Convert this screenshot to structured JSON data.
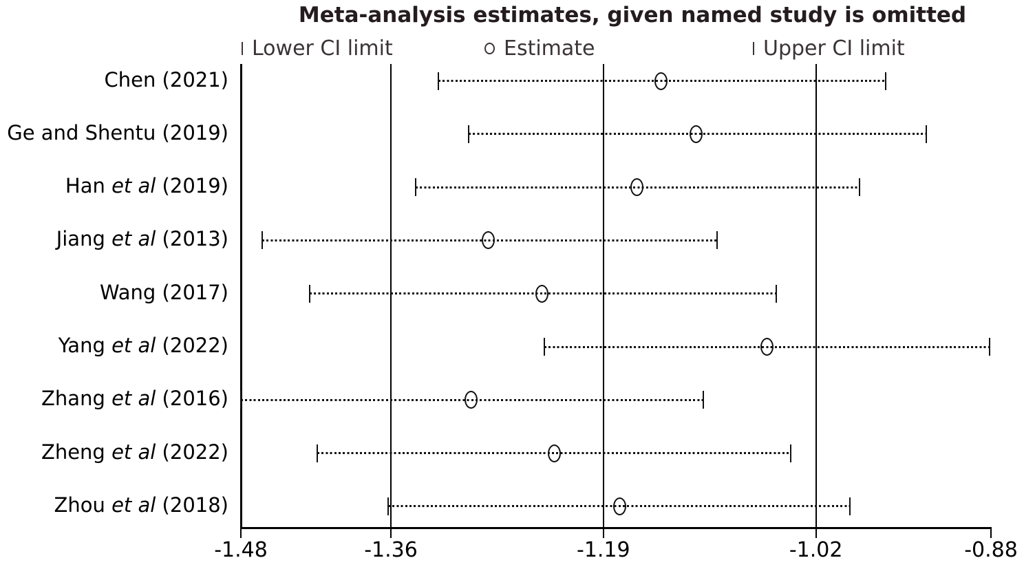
{
  "title": "Meta-analysis estimates, given named study is omitted",
  "legend": {
    "lower": {
      "symbol": "ci-tick-icon",
      "label": "Lower CI limit"
    },
    "estimate": {
      "symbol": "circle-icon",
      "label": "Estimate"
    },
    "upper": {
      "symbol": "ci-tick-icon",
      "label": "Upper CI limit"
    }
  },
  "chart_data": {
    "type": "scatter",
    "subtype": "leave-one-out-sensitivity-forest-plot",
    "title": "Meta-analysis estimates, given named study is omitted",
    "xlabel": "",
    "ylabel": "",
    "xlim": [
      -1.48,
      -0.88
    ],
    "xticks": [
      -1.48,
      -1.36,
      -1.19,
      -1.02,
      -0.88
    ],
    "reference_lines": {
      "overall_lower_ci": -1.36,
      "overall_estimate": -1.19,
      "overall_upper_ci": -1.02
    },
    "grid": false,
    "legend_position": "top",
    "studies": [
      {
        "name": "Chen",
        "etal": "",
        "year": "(2021)",
        "lower_ci": -1.322,
        "estimate": -1.144,
        "upper_ci": -0.964
      },
      {
        "name": "Ge and Shentu",
        "etal": "",
        "year": "(2019)",
        "lower_ci": -1.298,
        "estimate": -1.116,
        "upper_ci": -0.932
      },
      {
        "name": "Han",
        "etal": "et al",
        "year": "(2019)",
        "lower_ci": -1.34,
        "estimate": -1.163,
        "upper_ci": -0.985
      },
      {
        "name": "Jiang",
        "etal": "et al",
        "year": "(2013)",
        "lower_ci": -1.463,
        "estimate": -1.282,
        "upper_ci": -1.099
      },
      {
        "name": "Wang",
        "etal": "",
        "year": "(2017)",
        "lower_ci": -1.425,
        "estimate": -1.239,
        "upper_ci": -1.052
      },
      {
        "name": "Yang",
        "etal": "et al",
        "year": "(2022)",
        "lower_ci": -1.237,
        "estimate": -1.059,
        "upper_ci": -0.881
      },
      {
        "name": "Zhang",
        "etal": "et al",
        "year": "(2016)",
        "lower_ci": -1.48,
        "estimate": -1.296,
        "upper_ci": -1.11
      },
      {
        "name": "Zheng",
        "etal": "et al",
        "year": "(2022)",
        "lower_ci": -1.419,
        "estimate": -1.229,
        "upper_ci": -1.04
      },
      {
        "name": "Zhou",
        "etal": "et al",
        "year": "(2018)",
        "lower_ci": -1.362,
        "estimate": -1.177,
        "upper_ci": -0.993
      }
    ]
  },
  "colors": {
    "background": "#ffffff",
    "axis": "#000000",
    "marker": "#111111",
    "title_text": "#241c1f",
    "legend_text": "#3b3436"
  }
}
